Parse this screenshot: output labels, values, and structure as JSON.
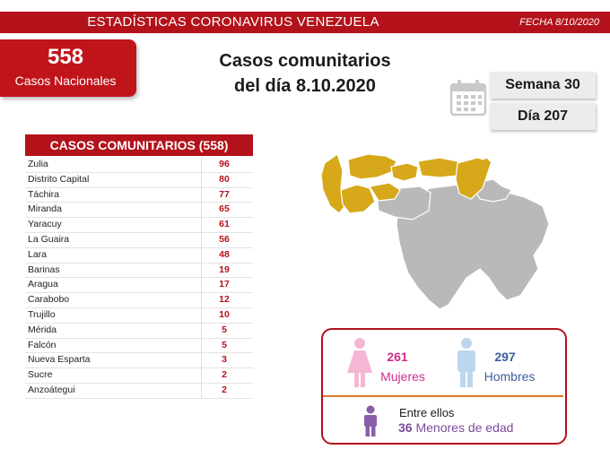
{
  "header": {
    "title": "ESTADÍSTICAS CORONAVIRUS VENEZUELA",
    "date": "FECHA 8/10/2020"
  },
  "national": {
    "count": "558",
    "label": "Casos Nacionales"
  },
  "main_title": {
    "line1": "Casos comunitarios",
    "line2": "del día 8.10.2020"
  },
  "week": {
    "semana": "Semana 30",
    "dia": "Día 207"
  },
  "table": {
    "title": "CASOS COMUNITARIOS (558)",
    "rows": [
      {
        "state": "Zulia",
        "cases": "96"
      },
      {
        "state": "Distrito Capital",
        "cases": "80"
      },
      {
        "state": "Táchira",
        "cases": "77"
      },
      {
        "state": "Miranda",
        "cases": "65"
      },
      {
        "state": "Yaracuy",
        "cases": "61"
      },
      {
        "state": "La Guaira",
        "cases": "56"
      },
      {
        "state": "Lara",
        "cases": "48"
      },
      {
        "state": "Barinas",
        "cases": "19"
      },
      {
        "state": "Aragua",
        "cases": "17"
      },
      {
        "state": "Carabobo",
        "cases": "12"
      },
      {
        "state": "Trujillo",
        "cases": "10"
      },
      {
        "state": "Mérida",
        "cases": "5"
      },
      {
        "state": "Falcón",
        "cases": "5"
      },
      {
        "state": "Nueva Esparta",
        "cases": "3"
      },
      {
        "state": "Sucre",
        "cases": "2"
      },
      {
        "state": "Anzoátegui",
        "cases": "2"
      }
    ]
  },
  "gender": {
    "female_count": "261",
    "female_label": "Mujeres",
    "male_count": "297",
    "male_label": "Hombres",
    "among_label": "Entre ellos",
    "minors_count": "36",
    "minors_label": "Menores de edad"
  },
  "colors": {
    "brand_red": "#b3121a",
    "map_highlight": "#d6a81a",
    "map_base": "#b9b9b9",
    "female": "#d22c8f",
    "male": "#3b5e9c",
    "minor": "#7a4a9a"
  },
  "icons": {
    "calendar": "calendar-icon",
    "female": "female-figure-icon",
    "male": "male-figure-icon",
    "minor": "child-figure-icon"
  }
}
